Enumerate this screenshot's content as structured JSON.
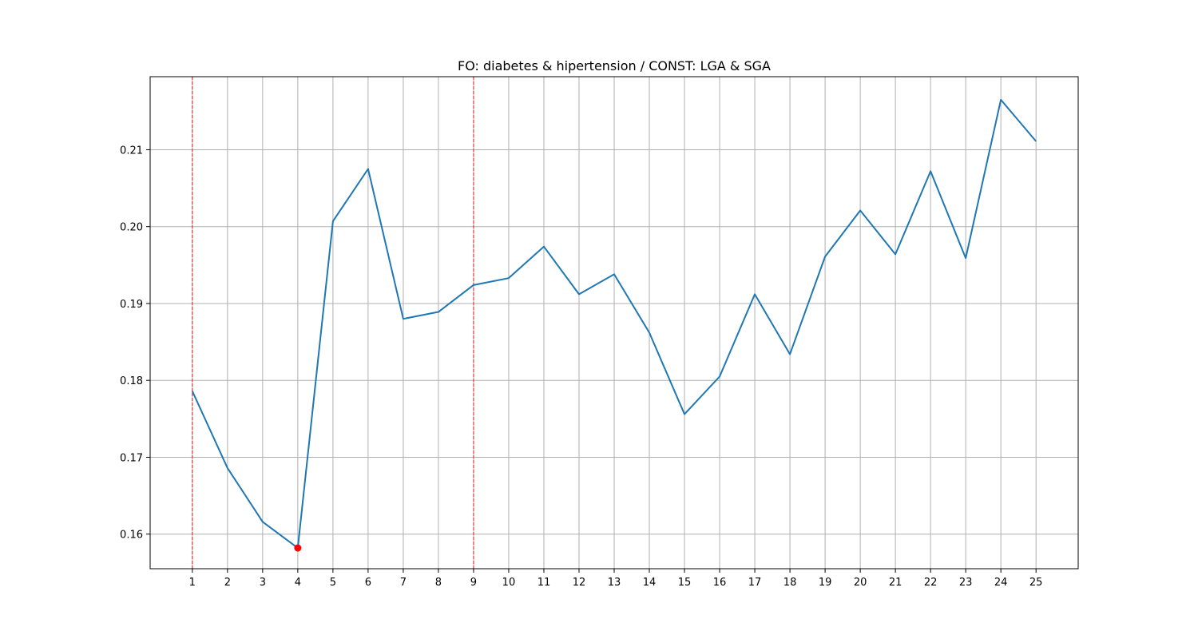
{
  "chart_data": {
    "type": "line",
    "title": "FO: diabetes & hipertension / CONST: LGA & SGA",
    "xlabel": "",
    "ylabel": "",
    "x": [
      1,
      2,
      3,
      4,
      5,
      6,
      7,
      8,
      9,
      10,
      11,
      12,
      13,
      14,
      15,
      16,
      17,
      18,
      19,
      20,
      21,
      22,
      23,
      24,
      25
    ],
    "series": [
      {
        "values": [
          0.1786,
          0.1686,
          0.1616,
          0.1582,
          0.2007,
          0.2075,
          0.188,
          0.1889,
          0.1924,
          0.1933,
          0.1974,
          0.1912,
          0.1938,
          0.1862,
          0.1756,
          0.1805,
          0.1912,
          0.1834,
          0.1961,
          0.2021,
          0.1964,
          0.2072,
          0.1959,
          0.2165,
          0.2111
        ],
        "color": "#1f77b4"
      }
    ],
    "xticks": [
      1,
      2,
      3,
      4,
      5,
      6,
      7,
      8,
      9,
      10,
      11,
      12,
      13,
      14,
      15,
      16,
      17,
      18,
      19,
      20,
      21,
      22,
      23,
      24,
      25
    ],
    "yticks": [
      0.16,
      0.17,
      0.18,
      0.19,
      0.2,
      0.21
    ],
    "ytick_labels": [
      "0.16",
      "0.17",
      "0.18",
      "0.19",
      "0.20",
      "0.21"
    ],
    "xlim": [
      -0.2,
      26.2
    ],
    "ylim": [
      0.1555,
      0.2195
    ],
    "grid": true,
    "vlines": {
      "x": [
        1,
        9
      ],
      "color": "#e41a1c",
      "style": "dashed"
    },
    "highlight_point": {
      "x": 4,
      "y": 0.1582,
      "color": "#ff0000"
    }
  }
}
